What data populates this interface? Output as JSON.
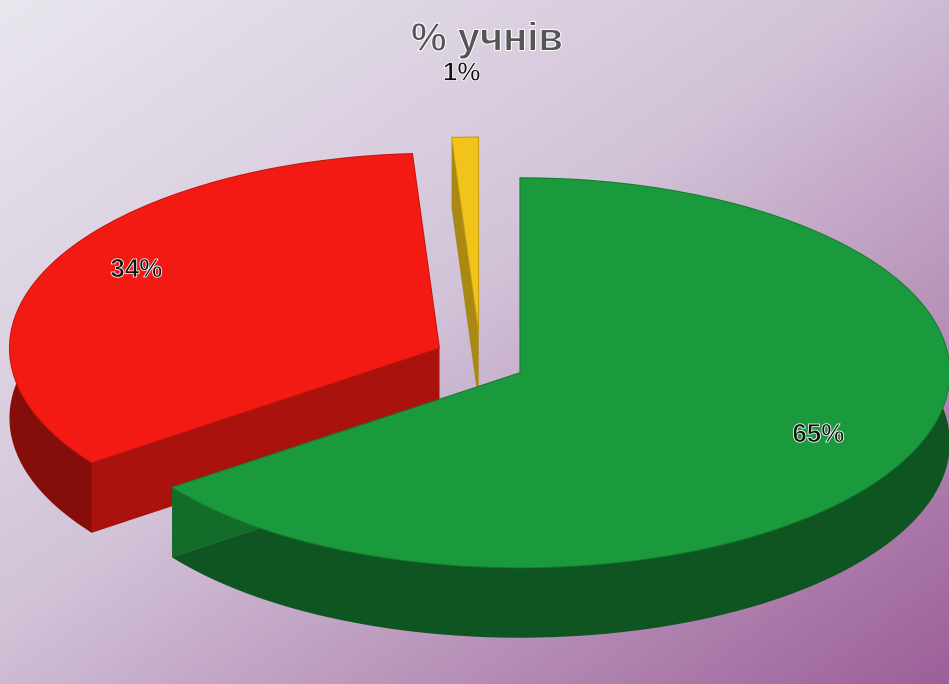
{
  "chart_data": {
    "type": "pie3d",
    "title": "% учнів",
    "values": [
      65,
      34,
      1
    ],
    "value_labels": [
      "65%",
      "34%",
      "1%"
    ],
    "colors": [
      "#1a9a3c",
      "#f21a12",
      "#f2c318"
    ]
  }
}
